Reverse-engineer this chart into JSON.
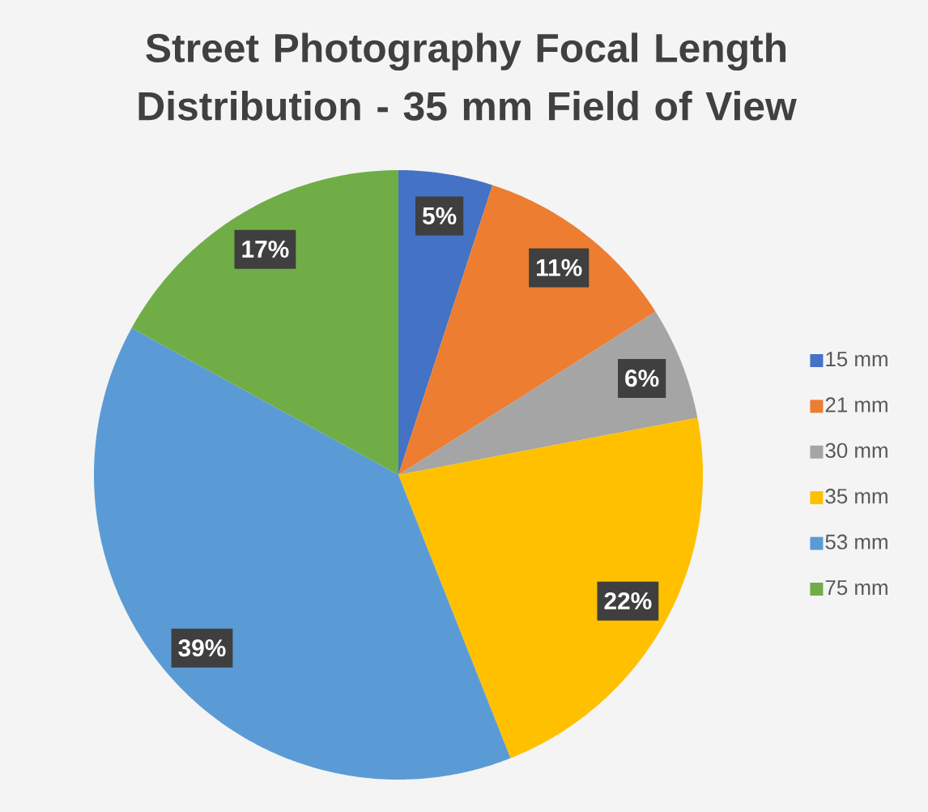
{
  "chart_data": {
    "type": "pie",
    "title": "Street Photography Focal Length Distribution - 35 mm Field of View",
    "categories": [
      "15 mm",
      "21 mm",
      "30 mm",
      "35 mm",
      "53 mm",
      "75 mm"
    ],
    "values": [
      5,
      11,
      6,
      22,
      39,
      17
    ],
    "colors": [
      "#4472c4",
      "#ed7d31",
      "#a5a5a5",
      "#ffc000",
      "#5b9bd5",
      "#70ad47"
    ],
    "value_labels": [
      "5%",
      "11%",
      "6%",
      "22%",
      "39%",
      "17%"
    ],
    "legend": "right"
  }
}
